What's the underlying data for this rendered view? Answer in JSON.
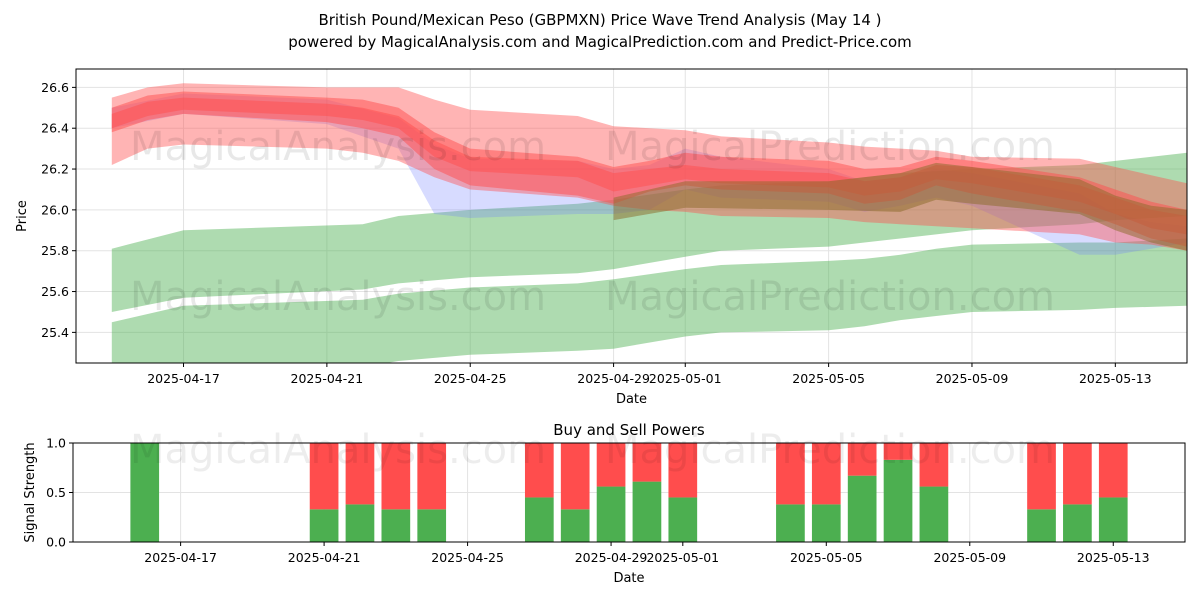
{
  "title_line1": "British Pound/Mexican Peso (GBPMXN) Price Wave Trend Analysis (May 14 )",
  "title_line2": "powered by MagicalAnalysis.com and MagicalPrediction.com and Predict-Price.com",
  "watermarks": [
    "MagicalAnalysis.com",
    "MagicalPrediction.com"
  ],
  "colors": {
    "green_band": "#4caf50",
    "red_band": "#ff4d4d",
    "blue_band": "#6f7fff",
    "buy": "#4caf50",
    "sell": "#ff4d4d"
  },
  "chart_data": [
    {
      "type": "area",
      "title": "",
      "xlabel": "Date",
      "ylabel": "Price",
      "xlim": [
        "2025-04-14",
        "2025-05-15"
      ],
      "ylim": [
        25.25,
        26.69
      ],
      "yticks": [
        25.4,
        25.6,
        25.8,
        26.0,
        26.2,
        26.4,
        26.6
      ],
      "xtick_labels": [
        "2025-04-17",
        "2025-04-21",
        "2025-04-25",
        "2025-04-29",
        "2025-05-01",
        "2025-05-05",
        "2025-05-09",
        "2025-05-13"
      ],
      "xtick_dates": [
        "2025-04-17",
        "2025-04-21",
        "2025-04-25",
        "2025-04-29",
        "2025-05-01",
        "2025-05-05",
        "2025-05-09",
        "2025-05-13"
      ],
      "grid": true,
      "green_bands": [
        {
          "x": [
            "2025-04-15",
            "2025-04-17",
            "2025-04-22",
            "2025-04-23",
            "2025-04-25",
            "2025-04-28",
            "2025-04-29",
            "2025-05-01",
            "2025-05-02",
            "2025-05-05",
            "2025-05-06",
            "2025-05-07",
            "2025-05-08",
            "2025-05-09",
            "2025-05-12",
            "2025-05-13",
            "2025-05-15"
          ],
          "upper": [
            25.81,
            25.9,
            25.93,
            25.97,
            26.0,
            26.03,
            26.05,
            26.1,
            26.12,
            26.14,
            26.16,
            26.18,
            26.19,
            26.2,
            26.22,
            26.24,
            26.28
          ],
          "lower": [
            25.5,
            25.57,
            25.61,
            25.64,
            25.67,
            25.69,
            25.71,
            25.77,
            25.8,
            25.82,
            25.84,
            25.86,
            25.88,
            25.9,
            25.93,
            25.95,
            25.97
          ]
        },
        {
          "x": [
            "2025-04-15",
            "2025-04-17",
            "2025-04-22",
            "2025-04-23",
            "2025-04-25",
            "2025-04-28",
            "2025-04-29",
            "2025-05-01",
            "2025-05-02",
            "2025-05-05",
            "2025-05-06",
            "2025-05-07",
            "2025-05-08",
            "2025-05-09",
            "2025-05-12",
            "2025-05-13",
            "2025-05-15"
          ],
          "upper": [
            25.45,
            25.53,
            25.56,
            25.59,
            25.62,
            25.64,
            25.66,
            25.71,
            25.73,
            25.75,
            25.76,
            25.78,
            25.81,
            25.83,
            25.84,
            25.84,
            25.86
          ],
          "lower": [
            25.13,
            25.2,
            25.23,
            25.26,
            25.29,
            25.31,
            25.32,
            25.38,
            25.4,
            25.41,
            25.43,
            25.46,
            25.48,
            25.5,
            25.51,
            25.52,
            25.53
          ]
        }
      ],
      "red_bands": [
        {
          "x": [
            "2025-04-15",
            "2025-04-16",
            "2025-04-17",
            "2025-04-21",
            "2025-04-22",
            "2025-04-23",
            "2025-04-24",
            "2025-04-25",
            "2025-04-28",
            "2025-04-29",
            "2025-04-30",
            "2025-05-01",
            "2025-05-02",
            "2025-05-05",
            "2025-05-06",
            "2025-05-07",
            "2025-05-08",
            "2025-05-09",
            "2025-05-12",
            "2025-05-13",
            "2025-05-14",
            "2025-05-15"
          ],
          "upper": [
            26.55,
            26.6,
            26.62,
            26.6,
            26.6,
            26.6,
            26.54,
            26.49,
            26.46,
            26.41,
            26.4,
            26.39,
            26.36,
            26.33,
            26.31,
            26.3,
            26.29,
            26.26,
            26.25,
            26.21,
            26.17,
            26.13
          ],
          "lower": [
            26.22,
            26.3,
            26.32,
            26.3,
            26.28,
            26.24,
            26.16,
            26.1,
            26.06,
            26.02,
            26.0,
            25.99,
            25.97,
            25.96,
            25.94,
            25.93,
            25.92,
            25.91,
            25.88,
            25.84,
            25.83,
            25.8
          ]
        },
        {
          "x": [
            "2025-04-15",
            "2025-04-16",
            "2025-04-17",
            "2025-04-21",
            "2025-04-22",
            "2025-04-23",
            "2025-04-24",
            "2025-04-25",
            "2025-04-28",
            "2025-04-29",
            "2025-04-30",
            "2025-05-01",
            "2025-05-02",
            "2025-05-05",
            "2025-05-06",
            "2025-05-07",
            "2025-05-08",
            "2025-05-09",
            "2025-05-12",
            "2025-05-13",
            "2025-05-14",
            "2025-05-15"
          ],
          "upper": [
            26.5,
            26.56,
            26.58,
            26.55,
            26.54,
            26.5,
            26.38,
            26.3,
            26.26,
            26.21,
            26.24,
            26.28,
            26.26,
            26.24,
            26.2,
            26.21,
            26.26,
            26.24,
            26.16,
            26.1,
            26.04,
            26.0
          ],
          "lower": [
            26.38,
            26.44,
            26.47,
            26.43,
            26.4,
            26.36,
            26.2,
            26.12,
            26.07,
            26.03,
            26.09,
            26.12,
            26.1,
            26.08,
            26.03,
            26.05,
            26.12,
            26.08,
            25.99,
            25.93,
            25.86,
            25.82
          ]
        },
        {
          "x": [
            "2025-04-15",
            "2025-04-16",
            "2025-04-17",
            "2025-04-21",
            "2025-04-22",
            "2025-04-23",
            "2025-04-24",
            "2025-04-25",
            "2025-04-28",
            "2025-04-29",
            "2025-04-30",
            "2025-05-01",
            "2025-05-02",
            "2025-05-05",
            "2025-05-06",
            "2025-05-07",
            "2025-05-08",
            "2025-05-09",
            "2025-05-12",
            "2025-05-13",
            "2025-05-14",
            "2025-05-15"
          ],
          "upper": [
            26.47,
            26.53,
            26.55,
            26.52,
            26.5,
            26.46,
            26.34,
            26.26,
            26.24,
            26.18,
            26.2,
            26.22,
            26.2,
            26.18,
            26.14,
            26.16,
            26.22,
            26.21,
            26.12,
            26.06,
            26.0,
            25.97
          ],
          "lower": [
            26.4,
            26.46,
            26.49,
            26.46,
            26.44,
            26.4,
            26.26,
            26.19,
            26.16,
            26.09,
            26.12,
            26.15,
            26.13,
            26.11,
            26.07,
            26.09,
            26.15,
            26.13,
            26.04,
            25.98,
            25.91,
            25.88
          ]
        }
      ],
      "blue_bands": [
        {
          "x": [
            "2025-04-15",
            "2025-04-17",
            "2025-04-21",
            "2025-04-23",
            "2025-04-24",
            "2025-04-25",
            "2025-04-28",
            "2025-04-29",
            "2025-04-30",
            "2025-05-01",
            "2025-05-02",
            "2025-05-05",
            "2025-05-06",
            "2025-05-07",
            "2025-05-08",
            "2025-05-09",
            "2025-05-12",
            "2025-05-13",
            "2025-05-14",
            "2025-05-15"
          ],
          "upper": [
            26.5,
            26.57,
            26.54,
            26.45,
            26.32,
            26.25,
            26.24,
            26.2,
            26.22,
            26.3,
            26.26,
            26.2,
            26.14,
            26.16,
            26.2,
            26.18,
            26.08,
            25.98,
            25.94,
            25.92
          ],
          "lower": [
            26.4,
            26.47,
            26.42,
            26.3,
            25.98,
            25.96,
            25.98,
            25.98,
            26.0,
            26.1,
            26.06,
            26.04,
            25.99,
            26.02,
            26.06,
            26.02,
            25.78,
            25.78,
            25.81,
            25.84
          ]
        }
      ],
      "olive_bands": [
        {
          "x": [
            "2025-04-29",
            "2025-05-01",
            "2025-05-05",
            "2025-05-07",
            "2025-05-08",
            "2025-05-09",
            "2025-05-12",
            "2025-05-13",
            "2025-05-14",
            "2025-05-15"
          ],
          "upper": [
            26.06,
            26.14,
            26.14,
            26.18,
            26.23,
            26.21,
            26.15,
            26.07,
            26.02,
            26.0
          ],
          "lower": [
            25.95,
            26.01,
            26.0,
            25.99,
            26.05,
            26.03,
            25.98,
            25.9,
            25.84,
            25.8
          ]
        }
      ]
    },
    {
      "type": "bar",
      "title": "Buy and Sell Powers",
      "xlabel": "Date",
      "ylabel": "Signal Strength",
      "ylim": [
        0,
        1.0
      ],
      "yticks": [
        0.0,
        0.5,
        1.0
      ],
      "xtick_labels": [
        "2025-04-17",
        "2025-04-21",
        "2025-04-25",
        "2025-04-29",
        "2025-05-01",
        "2025-05-05",
        "2025-05-09",
        "2025-05-13"
      ],
      "xtick_dates": [
        "2025-04-17",
        "2025-04-21",
        "2025-04-25",
        "2025-04-29",
        "2025-05-01",
        "2025-05-05",
        "2025-05-09",
        "2025-05-13"
      ],
      "grid": true,
      "categories": [
        "2025-04-16",
        "2025-04-21",
        "2025-04-22",
        "2025-04-23",
        "2025-04-24",
        "2025-04-27",
        "2025-04-28",
        "2025-04-29",
        "2025-04-30",
        "2025-05-01",
        "2025-05-04",
        "2025-05-05",
        "2025-05-06",
        "2025-05-07",
        "2025-05-08",
        "2025-05-11",
        "2025-05-12",
        "2025-05-13"
      ],
      "series": [
        {
          "name": "Buy",
          "values": [
            1.0,
            0.33,
            0.38,
            0.33,
            0.33,
            0.45,
            0.33,
            0.56,
            0.61,
            0.45,
            0.38,
            0.38,
            0.67,
            0.83,
            0.56,
            0.33,
            0.38,
            0.45
          ]
        },
        {
          "name": "Sell",
          "values": [
            0.0,
            0.67,
            0.62,
            0.67,
            0.67,
            0.55,
            0.67,
            0.44,
            0.39,
            0.55,
            0.62,
            0.62,
            0.33,
            0.17,
            0.44,
            0.67,
            0.62,
            0.55
          ]
        }
      ]
    }
  ]
}
